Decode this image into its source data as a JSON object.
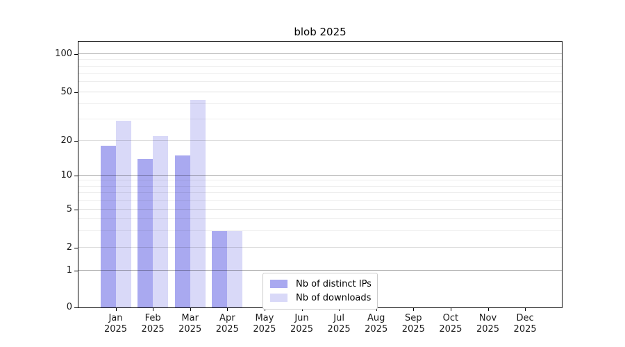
{
  "title": "blob 2025",
  "chart_data": {
    "type": "bar",
    "title": "blob 2025",
    "categories": [
      "Jan 2025",
      "Feb 2025",
      "Mar 2025",
      "Apr 2025",
      "May 2025",
      "Jun 2025",
      "Jul 2025",
      "Aug 2025",
      "Sep 2025",
      "Oct 2025",
      "Nov 2025",
      "Dec 2025"
    ],
    "series": [
      {
        "name": "Nb of distinct IPs",
        "color": "#a9a9f0",
        "values": [
          18,
          14,
          15,
          3,
          0,
          0,
          0,
          0,
          0,
          0,
          0,
          0
        ]
      },
      {
        "name": "Nb of downloads",
        "color": "#d9d9f8",
        "values": [
          29,
          22,
          43,
          3,
          0,
          0,
          0,
          0,
          0,
          0,
          0,
          0
        ]
      }
    ],
    "xlabel": "",
    "ylabel": "",
    "yticks": [
      0,
      1,
      2,
      5,
      10,
      20,
      50,
      100
    ],
    "minor_gridline_values": [
      3,
      4,
      6,
      7,
      8,
      9,
      30,
      40,
      60,
      70,
      80,
      90
    ],
    "ylim": [
      0,
      126
    ],
    "scale": "log above 1, linear 0-1",
    "grid": "horizontal, major and minor",
    "legend_position": "bottom-center",
    "plot_border_color": "#000000",
    "background_color": "#ffffff"
  }
}
